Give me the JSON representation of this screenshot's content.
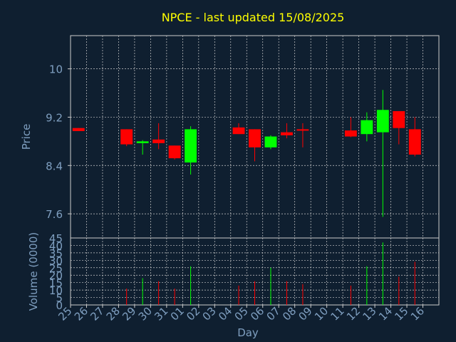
{
  "chart_data": {
    "type": "candlestick",
    "title": "NPCE - last updated 15/08/2025",
    "xlabel": "Day",
    "ylabel": "Price",
    "volume_label": "Volume (0000)",
    "categories": [
      "25",
      "26",
      "27",
      "28",
      "29",
      "30",
      "31",
      "01",
      "02",
      "03",
      "04",
      "05",
      "06",
      "07",
      "08",
      "09",
      "10",
      "11",
      "12",
      "13",
      "14",
      "15",
      "16"
    ],
    "price_ticks": [
      "7.6",
      "8.4",
      "9.2",
      "10"
    ],
    "volume_ticks": [
      "0",
      "5",
      "10",
      "15",
      "20",
      "25",
      "30",
      "35",
      "40",
      "45"
    ],
    "ylim": [
      7.2,
      10.55
    ],
    "vol_lim": [
      0,
      45
    ],
    "colors": {
      "background": "#0f1f30",
      "text": "#7f9fc0",
      "title": "#ffff00",
      "up": "#00ff00",
      "down": "#ff0000",
      "grid": "#cccccc"
    },
    "candles": [
      {
        "day": "25",
        "open": 9.02,
        "high": 9.02,
        "low": 8.97,
        "close": 8.97,
        "volume": 0
      },
      {
        "day": "28",
        "open": 9.0,
        "high": 9.0,
        "low": 8.72,
        "close": 8.75,
        "volume": 11
      },
      {
        "day": "29",
        "open": 8.77,
        "high": 8.82,
        "low": 8.58,
        "close": 8.8,
        "volume": 18
      },
      {
        "day": "30",
        "open": 8.83,
        "high": 9.1,
        "low": 8.67,
        "close": 8.77,
        "volume": 16
      },
      {
        "day": "31",
        "open": 8.73,
        "high": 8.73,
        "low": 8.5,
        "close": 8.52,
        "volume": 11
      },
      {
        "day": "01",
        "open": 8.45,
        "high": 9.05,
        "low": 8.25,
        "close": 9.0,
        "volume": 26
      },
      {
        "day": "04",
        "open": 9.03,
        "high": 9.1,
        "low": 8.92,
        "close": 8.92,
        "volume": 13
      },
      {
        "day": "05",
        "open": 9.0,
        "high": 9.0,
        "low": 8.47,
        "close": 8.7,
        "volume": 16
      },
      {
        "day": "06",
        "open": 8.7,
        "high": 8.9,
        "low": 8.67,
        "close": 8.88,
        "volume": 25
      },
      {
        "day": "07",
        "open": 8.95,
        "high": 9.1,
        "low": 8.85,
        "close": 8.9,
        "volume": 16
      },
      {
        "day": "08",
        "open": 9.0,
        "high": 9.1,
        "low": 8.7,
        "close": 8.98,
        "volume": 14
      },
      {
        "day": "11",
        "open": 8.98,
        "high": 9.2,
        "low": 8.87,
        "close": 8.88,
        "volume": 13
      },
      {
        "day": "12",
        "open": 8.92,
        "high": 9.28,
        "low": 8.8,
        "close": 9.15,
        "volume": 26
      },
      {
        "day": "13",
        "open": 8.95,
        "high": 9.65,
        "low": 7.55,
        "close": 9.32,
        "volume": 42
      },
      {
        "day": "14",
        "open": 9.3,
        "high": 9.3,
        "low": 8.75,
        "close": 9.02,
        "volume": 19
      },
      {
        "day": "15",
        "open": 9.0,
        "high": 9.2,
        "low": 8.55,
        "close": 8.58,
        "volume": 29
      }
    ]
  }
}
